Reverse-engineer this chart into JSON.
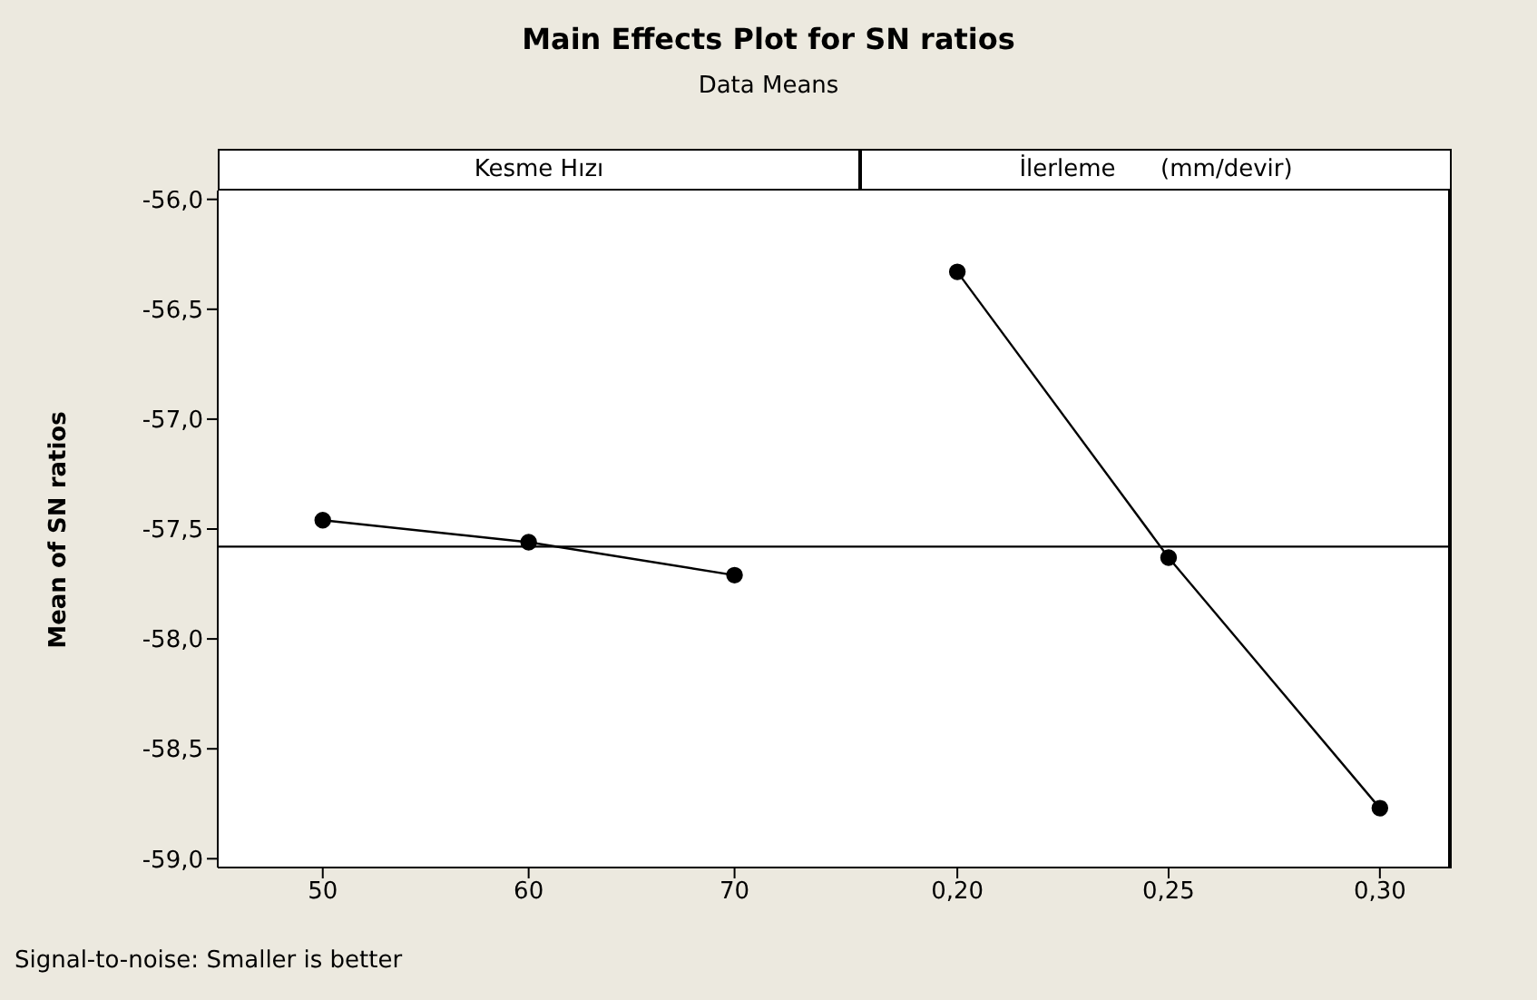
{
  "chart_data": [
    {
      "type": "line",
      "title": "Main Effects Plot for SN ratios",
      "subtitle": "Data Means",
      "xlabel": "Kesme Hızı",
      "ylabel": "Mean of SN ratios",
      "annotations": [
        "Signal-to-noise: Smaller is better"
      ],
      "x": [
        50,
        60,
        70
      ],
      "series": [
        {
          "color": "#000000",
          "values": [
            -57.46,
            -57.56,
            -57.71
          ]
        }
      ],
      "xlim": [
        44.9,
        76.1
      ],
      "xticks": [
        50,
        60,
        70
      ],
      "ylim": [
        -59.04,
        -55.96
      ],
      "yticks": [
        {
          "value": -56,
          "label": "-56,0"
        },
        {
          "value": -56.5,
          "label": "-56,5"
        },
        {
          "value": -57,
          "label": "-57,0"
        },
        {
          "value": -57.5,
          "label": "-57,5"
        },
        {
          "value": -58,
          "label": "-58,0"
        },
        {
          "value": -58.5,
          "label": "-58,5"
        },
        {
          "value": -59,
          "label": "-59,0"
        }
      ],
      "ref_lines": [
        {
          "axis": "y",
          "value": -57.58,
          "color": "#000000"
        }
      ],
      "marker": "circle",
      "line_style": "solid",
      "grid": false,
      "legend": false
    },
    {
      "type": "line",
      "xlabel": "İlerleme      (mm/devir)",
      "x": [
        0.2,
        0.25,
        0.3
      ],
      "series": [
        {
          "color": "#000000",
          "values": [
            -56.33,
            -57.63,
            -58.77
          ]
        }
      ],
      "xlim": [
        0.177,
        0.317
      ],
      "xticks": [
        {
          "value": 0.2,
          "label": "0,20"
        },
        {
          "value": 0.25,
          "label": "0,25"
        },
        {
          "value": 0.3,
          "label": "0,30"
        }
      ],
      "ylim": [
        -59.04,
        -55.96
      ],
      "ref_lines": [
        {
          "axis": "y",
          "value": -57.58,
          "color": "#000000"
        }
      ],
      "tick_labels": "x",
      "marker": "circle",
      "line_style": "solid",
      "grid": false,
      "legend": false
    }
  ]
}
